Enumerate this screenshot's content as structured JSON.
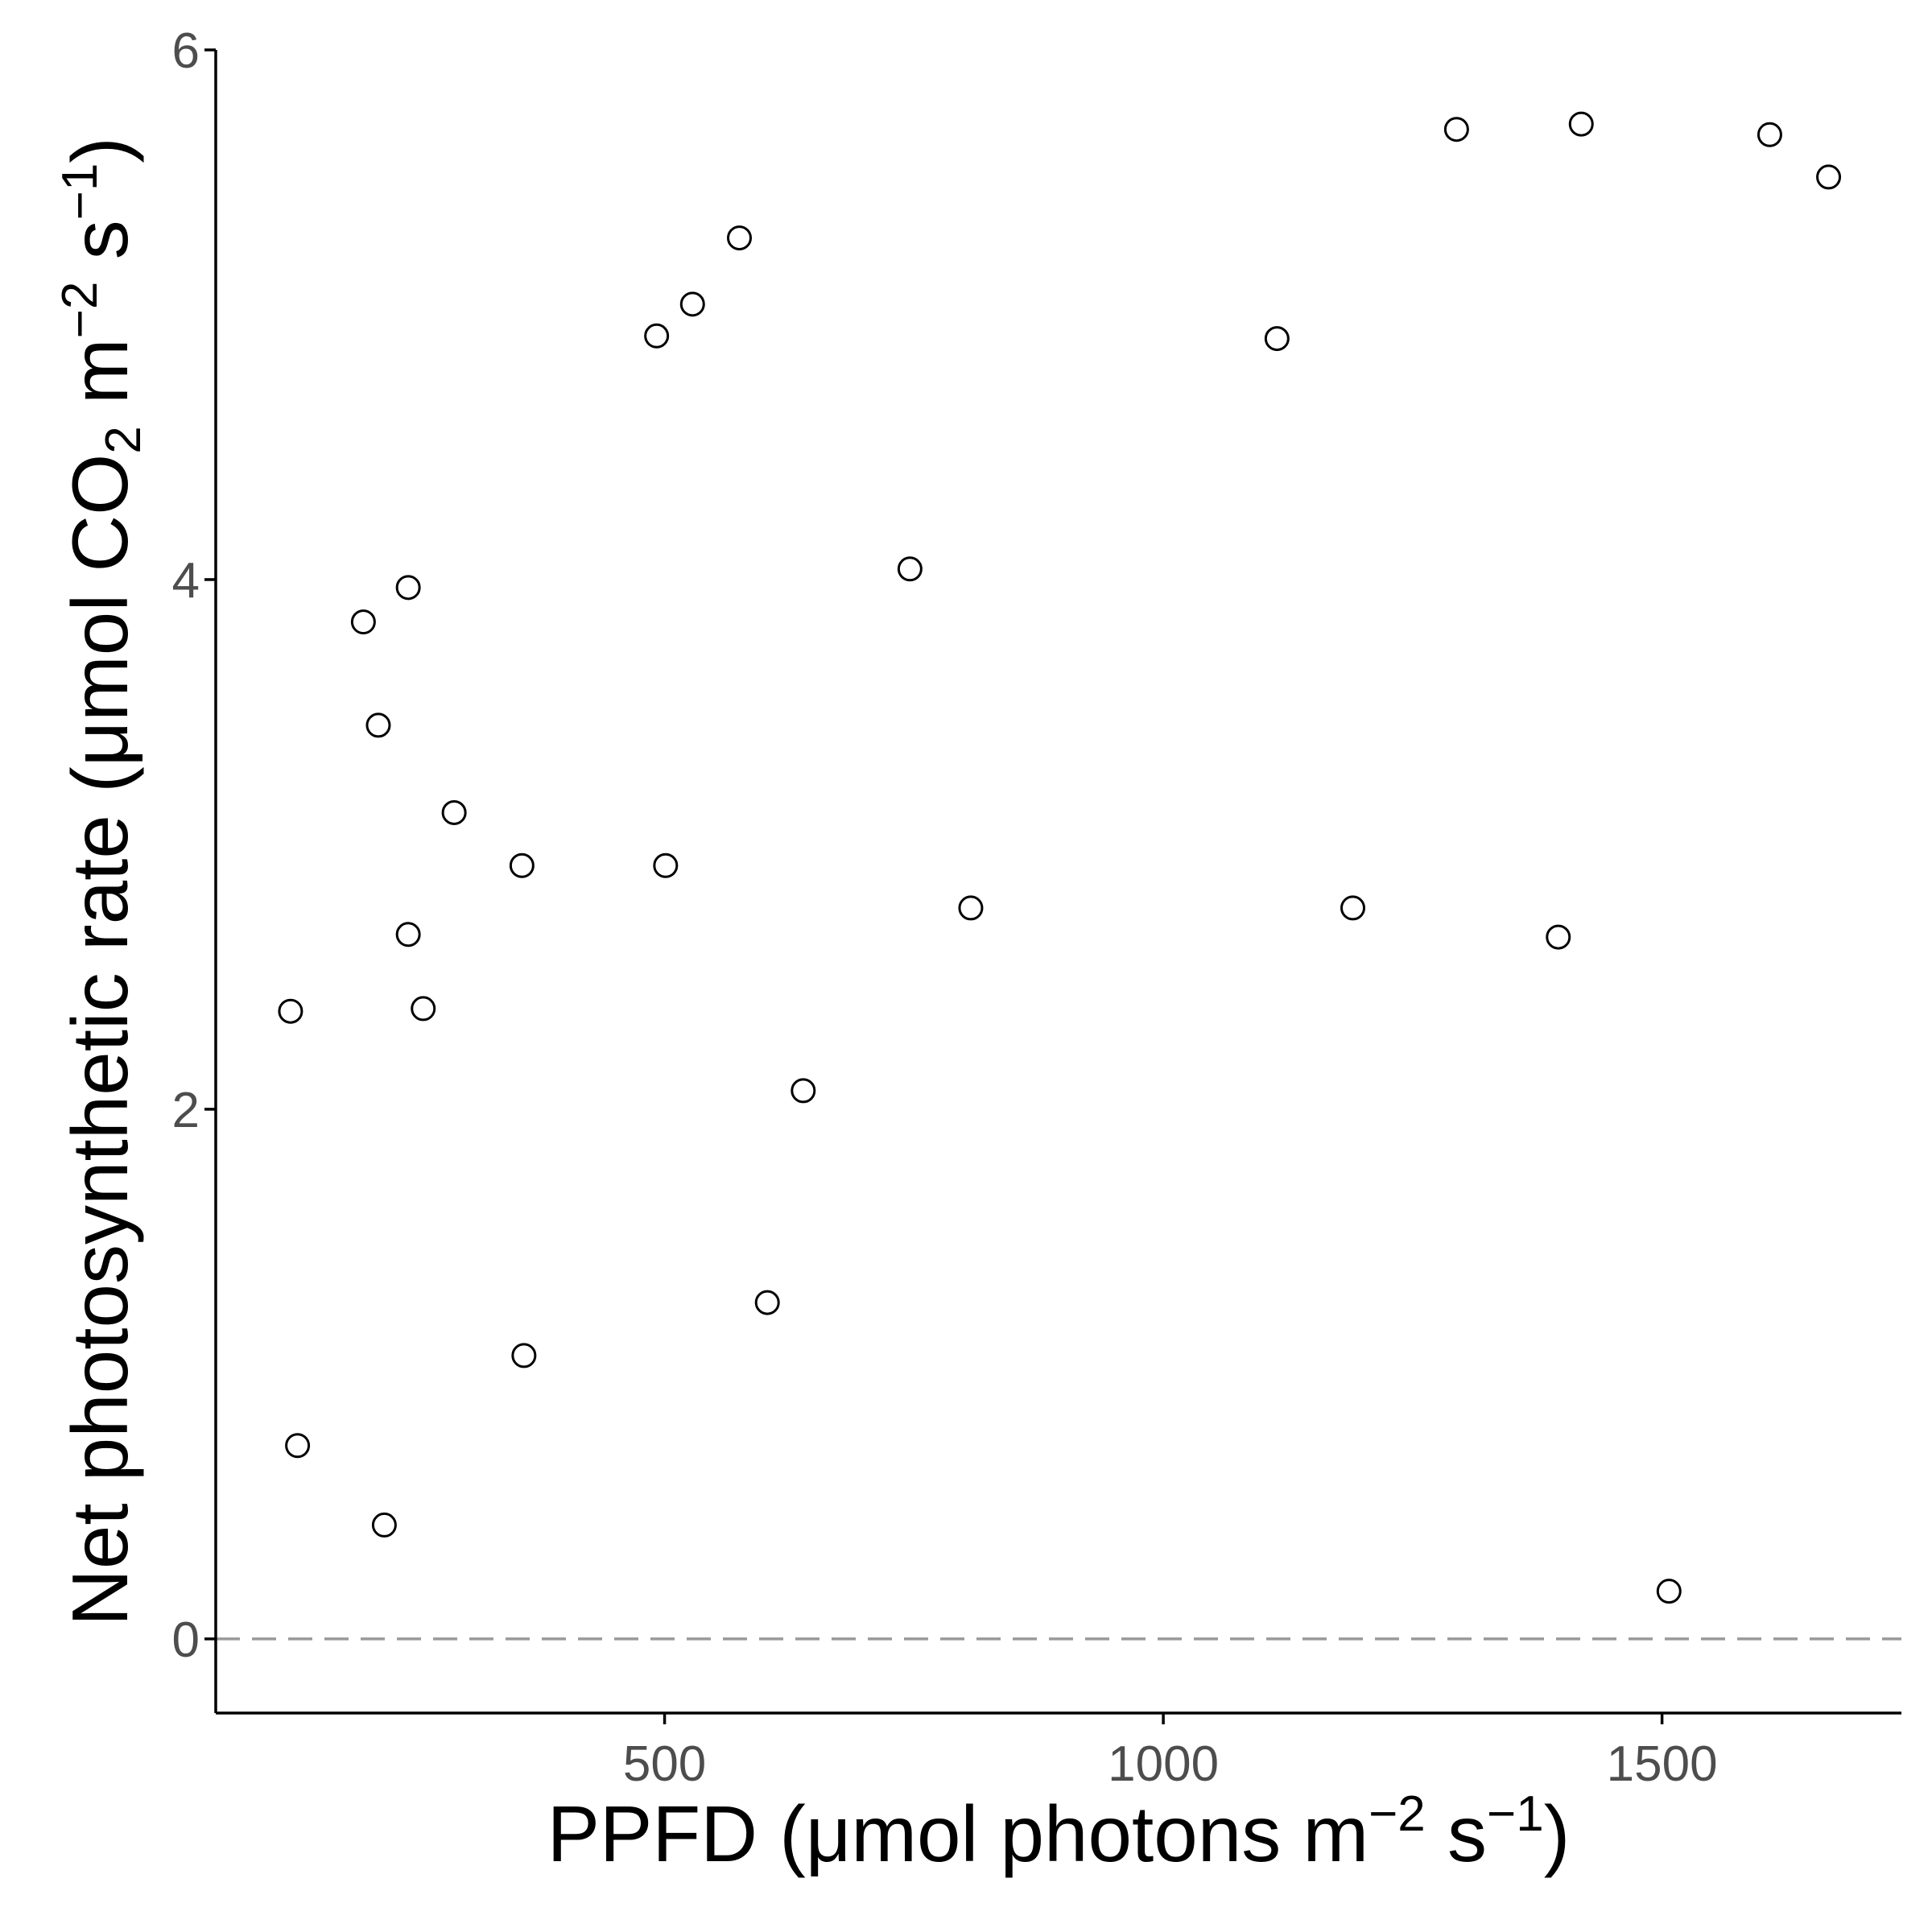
{
  "chart_data": {
    "type": "scatter",
    "title": "",
    "xlabel": {
      "prefix": "PPFD (μmol photons m",
      "sup1": "−2",
      "mid": " s",
      "sup2": "−1",
      "suffix": ")"
    },
    "ylabel": {
      "prefix": "Net photosynthetic rate (μmol CO",
      "sub": "2",
      "mid1": " m",
      "sup1": "−2",
      "mid2": " s",
      "sup2": "−1",
      "suffix": ")"
    },
    "xlim": [
      50,
      1740
    ],
    "ylim": [
      -0.28,
      6.0
    ],
    "xticks": [
      {
        "value": 500,
        "label": "500"
      },
      {
        "value": 1000,
        "label": "1000"
      },
      {
        "value": 1500,
        "label": "1500"
      }
    ],
    "yticks": [
      {
        "value": 0,
        "label": "0"
      },
      {
        "value": 2,
        "label": "2"
      },
      {
        "value": 4,
        "label": "4"
      },
      {
        "value": 6,
        "label": "6"
      }
    ],
    "reference_line": {
      "y": 0,
      "style": "dashed",
      "color": "#999999"
    },
    "grid": false,
    "marker": {
      "shape": "open-circle",
      "stroke": "#000000",
      "fill": "#ffffff"
    },
    "points": [
      {
        "x": 125,
        "y": 2.37
      },
      {
        "x": 132,
        "y": 0.73
      },
      {
        "x": 198,
        "y": 3.84
      },
      {
        "x": 213,
        "y": 3.45
      },
      {
        "x": 219,
        "y": 0.43
      },
      {
        "x": 243,
        "y": 3.97
      },
      {
        "x": 243,
        "y": 2.66
      },
      {
        "x": 258,
        "y": 2.38
      },
      {
        "x": 289,
        "y": 3.12
      },
      {
        "x": 357,
        "y": 2.92
      },
      {
        "x": 359,
        "y": 1.07
      },
      {
        "x": 492,
        "y": 4.92
      },
      {
        "x": 501,
        "y": 2.92
      },
      {
        "x": 528,
        "y": 5.04
      },
      {
        "x": 575,
        "y": 5.29
      },
      {
        "x": 603,
        "y": 1.27
      },
      {
        "x": 639,
        "y": 2.07
      },
      {
        "x": 746,
        "y": 4.04
      },
      {
        "x": 807,
        "y": 2.76
      },
      {
        "x": 1114,
        "y": 4.91
      },
      {
        "x": 1190,
        "y": 2.76
      },
      {
        "x": 1294,
        "y": 5.7
      },
      {
        "x": 1396,
        "y": 2.65
      },
      {
        "x": 1419,
        "y": 5.72
      },
      {
        "x": 1507,
        "y": 0.18
      },
      {
        "x": 1608,
        "y": 5.68
      },
      {
        "x": 1667,
        "y": 5.52
      }
    ]
  }
}
